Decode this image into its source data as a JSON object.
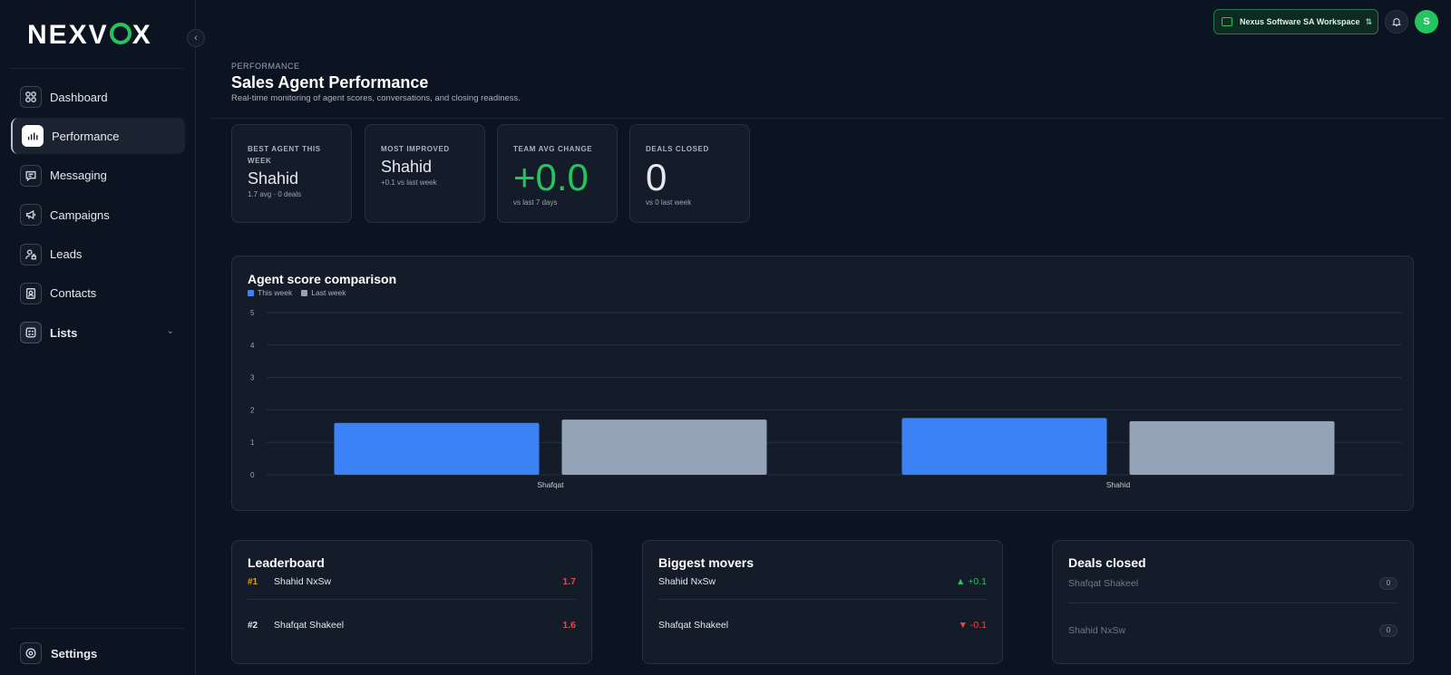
{
  "brand": {
    "logo_left": "NEXV",
    "logo_right": "X"
  },
  "sidebar": {
    "items": [
      {
        "label": "Dashboard",
        "icon": "dashboard-icon"
      },
      {
        "label": "Performance",
        "icon": "bar-chart-icon",
        "active": true
      },
      {
        "label": "Messaging",
        "icon": "message-icon"
      },
      {
        "label": "Campaigns",
        "icon": "megaphone-icon"
      },
      {
        "label": "Leads",
        "icon": "user-lock-icon"
      },
      {
        "label": "Contacts",
        "icon": "contact-card-icon"
      },
      {
        "label": "Lists",
        "icon": "list-icon",
        "expandable": true
      }
    ],
    "settings_label": "Settings"
  },
  "topbar": {
    "workspace_label": "Nexus Software SA Workspace",
    "avatar_initial": "S"
  },
  "header": {
    "eyebrow": "PERFORMANCE",
    "title": "Sales Agent Performance",
    "subtitle": "Real-time monitoring of agent scores, conversations, and closing readiness."
  },
  "kpis": [
    {
      "label": "BEST AGENT THIS WEEK",
      "value": "Shahid",
      "sub": "1.7 avg · 0 deals"
    },
    {
      "label": "MOST IMPROVED",
      "value": "Shahid",
      "sub": "+0.1 vs last week"
    },
    {
      "label": "TEAM AVG CHANGE",
      "value": "+0.0",
      "sub": "vs last 7 days"
    },
    {
      "label": "DEALS CLOSED",
      "value": "0",
      "sub": "vs 0 last week"
    }
  ],
  "colors": {
    "this_week": "#3b82f6",
    "last_week": "#94a3b8",
    "accent_green": "#22c55e",
    "negative_red": "#ef4444",
    "rank_gold": "#f59e0b"
  },
  "chart_data": {
    "type": "bar",
    "title": "Agent score comparison",
    "categories": [
      "Shafqat",
      "Shahid"
    ],
    "series": [
      {
        "name": "This week",
        "values": [
          1.6,
          1.75
        ]
      },
      {
        "name": "Last week",
        "values": [
          1.7,
          1.65
        ]
      }
    ],
    "ylim": [
      0,
      5
    ],
    "yticks": [
      "0",
      "1",
      "2",
      "3",
      "4",
      "5"
    ],
    "grid": true,
    "legend": "top-left"
  },
  "leaderboard": {
    "title": "Leaderboard",
    "rows": [
      {
        "rank": "#1",
        "name": "Shahid NxSw",
        "score": "1.7"
      },
      {
        "rank": "#2",
        "name": "Shafqat Shakeel",
        "score": "1.6"
      }
    ]
  },
  "movers": {
    "title": "Biggest movers",
    "rows": [
      {
        "name": "Shahid NxSw",
        "delta": "▲ +0.1",
        "direction": "up"
      },
      {
        "name": "Shafqat Shakeel",
        "delta": "▼ -0.1",
        "direction": "down"
      }
    ]
  },
  "deals": {
    "title": "Deals closed",
    "rows": [
      {
        "name": "Shafqat Shakeel",
        "count": "0"
      },
      {
        "name": "Shahid NxSw",
        "count": "0"
      }
    ]
  }
}
